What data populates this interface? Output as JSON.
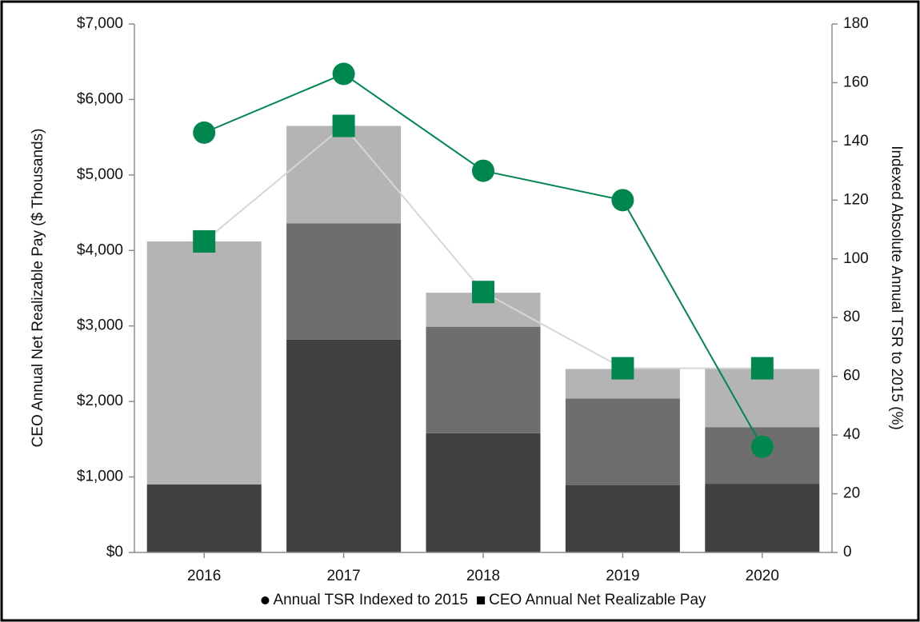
{
  "chart_data": {
    "type": "bar",
    "categories": [
      "2016",
      "2017",
      "2018",
      "2019",
      "2020"
    ],
    "series": [
      {
        "type": "bar",
        "color": "#414141",
        "values": [
          900,
          2820,
          1580,
          890,
          910
        ]
      },
      {
        "type": "bar",
        "color": "#6e6e6e",
        "values": [
          0,
          1540,
          1410,
          1150,
          750
        ]
      },
      {
        "type": "bar",
        "color": "#b4b4b4",
        "values": [
          3220,
          1290,
          450,
          390,
          770
        ]
      },
      {
        "type": "line",
        "name": "CEO Annual Net Realizable Pay",
        "marker": "square",
        "color": "#00874f",
        "line_color": "#d6d6d6",
        "values": [
          4120,
          5650,
          3450,
          2440,
          2440
        ]
      },
      {
        "type": "line",
        "name": "Annual TSR Indexed to 2015",
        "marker": "circle",
        "color": "#00874f",
        "line_color": "#00874f",
        "axis": "y2",
        "values": [
          143,
          163,
          130,
          120,
          36
        ]
      }
    ],
    "legend_order": [
      4,
      3
    ],
    "y_label": "CEO Annual Net Realizable Pay ($ Thousands)",
    "y2_label": "Indexed Absolute Annual TSR to 2015 (%)",
    "ylim": [
      0,
      7000
    ],
    "yticks": [
      {
        "value": 0,
        "label": "$0"
      },
      {
        "value": 1000,
        "label": "$1,000"
      },
      {
        "value": 2000,
        "label": "$2,000"
      },
      {
        "value": 3000,
        "label": "$3,000"
      },
      {
        "value": 4000,
        "label": "$4,000"
      },
      {
        "value": 5000,
        "label": "$5,000"
      },
      {
        "value": 6000,
        "label": "$6,000"
      },
      {
        "value": 7000,
        "label": "$7,000"
      }
    ],
    "y2lim": [
      0,
      180
    ],
    "y2ticks": [
      0,
      20,
      40,
      60,
      80,
      100,
      120,
      140,
      160,
      180
    ],
    "grid": false,
    "legend": "bottom",
    "stacked": true
  }
}
